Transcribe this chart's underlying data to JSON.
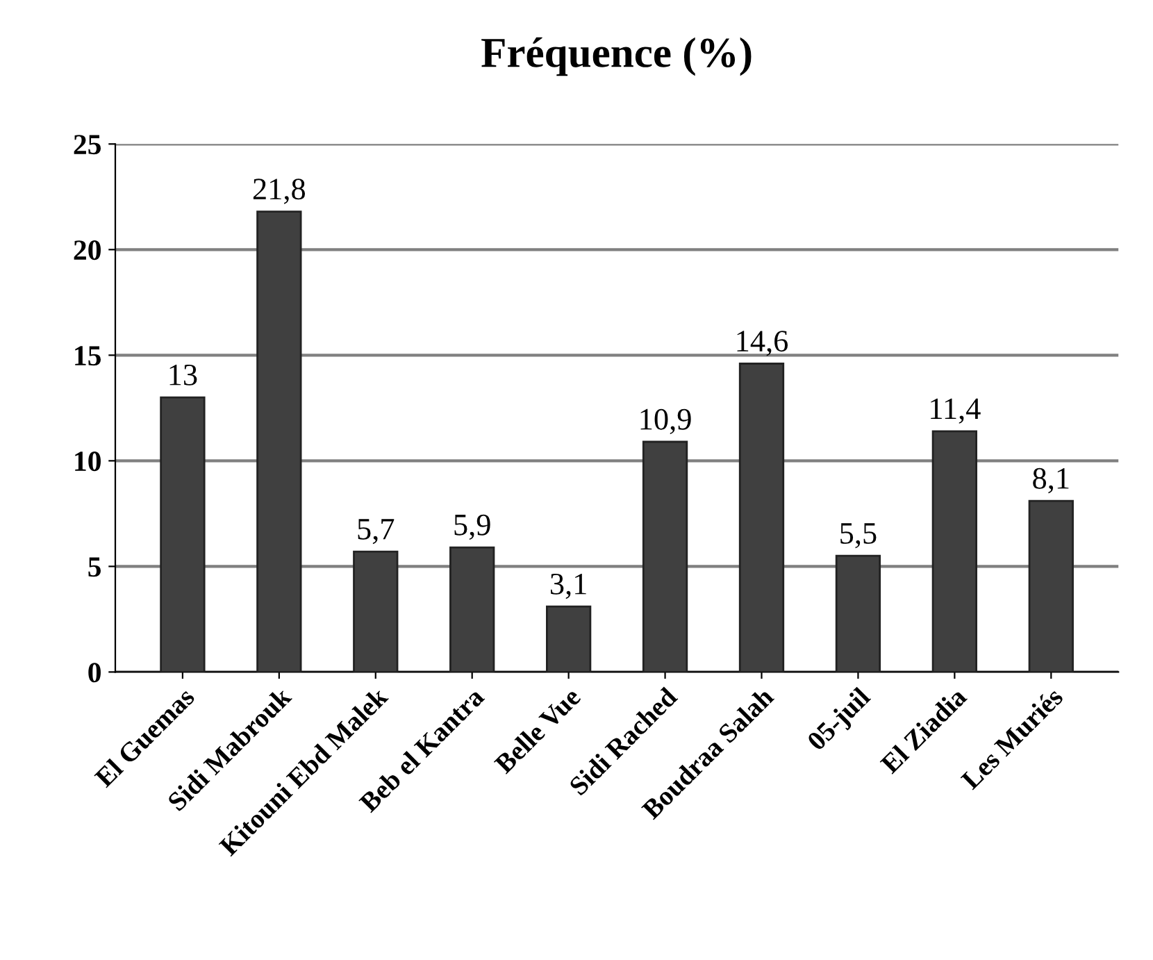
{
  "chart_data": {
    "type": "bar",
    "title": "Fréquence (%)",
    "categories": [
      "El Guemas",
      "Sidi Mabrouk",
      "Kitouni Ebd Malek",
      "Beb el Kantra",
      "Belle Vue",
      "Sidi Rached",
      "Boudraa Salah",
      "05-juil",
      "El Ziadia",
      "Les Muriés"
    ],
    "values": [
      13,
      21.8,
      5.7,
      5.9,
      3.1,
      10.9,
      14.6,
      5.5,
      11.4,
      8.1
    ],
    "value_labels": [
      "13",
      "21,8",
      "5,7",
      "5,9",
      "3,1",
      "10,9",
      "14,6",
      "5,5",
      "11,4",
      "8,1"
    ],
    "color": "#404040",
    "ylim": [
      0,
      25
    ],
    "yticks": [
      0,
      5,
      10,
      15,
      20,
      25
    ],
    "grid": "y",
    "legend": false
  }
}
